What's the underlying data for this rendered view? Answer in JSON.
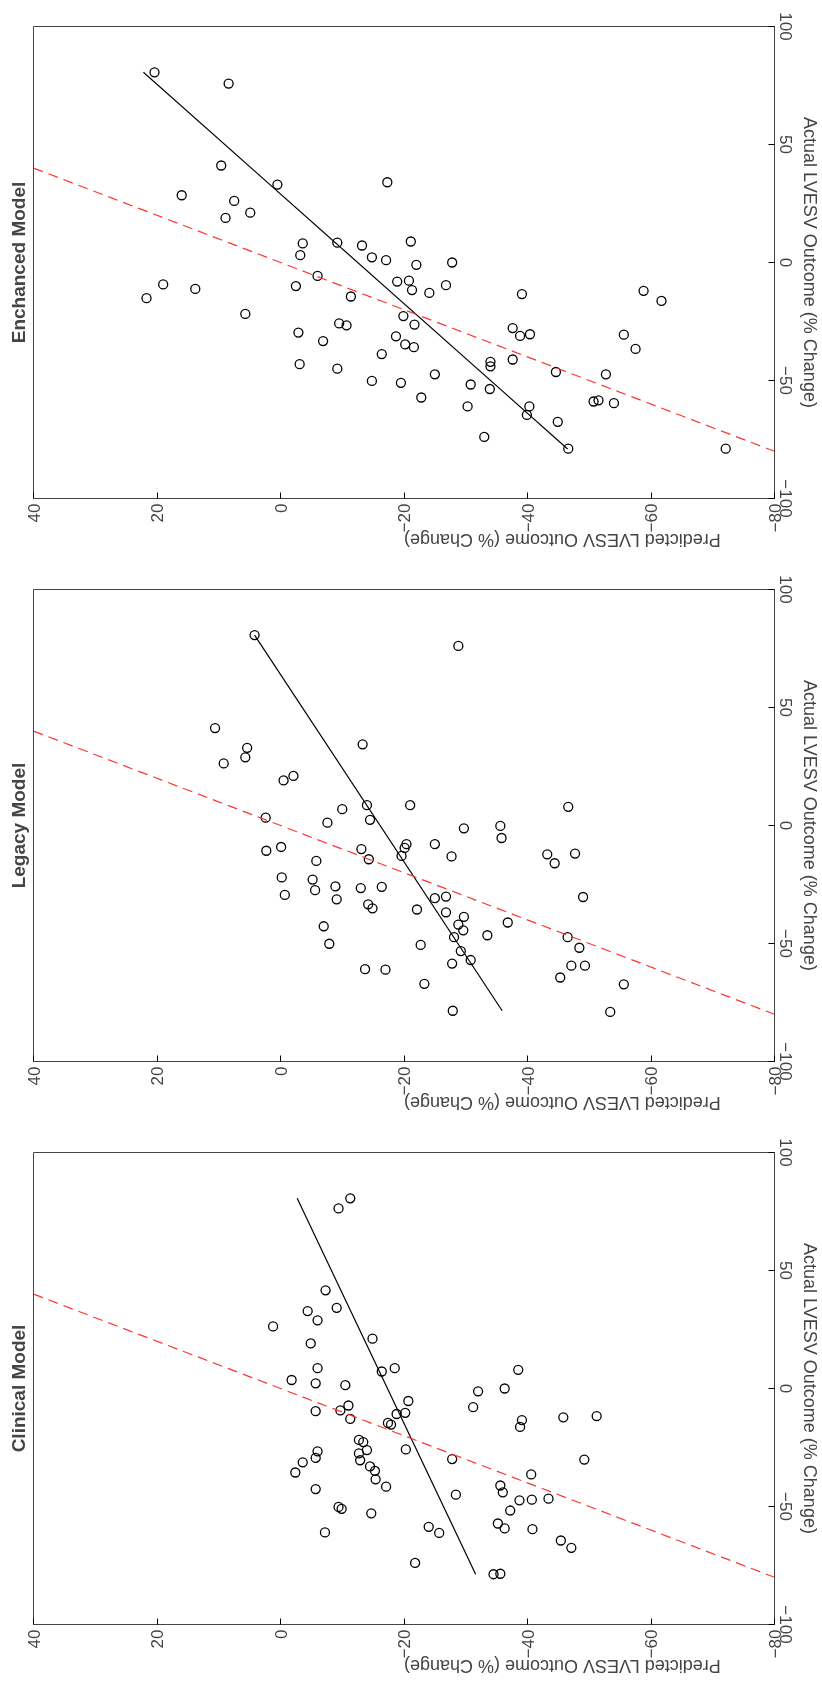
{
  "chart_data": [
    {
      "type": "scatter",
      "title": "Enchanced Model",
      "xlabel": "Predicted LVESV Outcome (% Change)",
      "ylabel": "Actual LVESV Outcome (% Change)",
      "xlim": [
        40,
        -80
      ],
      "xticks": [
        40,
        20,
        0,
        -20,
        -40,
        -60,
        -80
      ],
      "ylim": [
        -100,
        100
      ],
      "yticks": [
        -100,
        -50,
        0,
        50,
        100
      ],
      "grid": false,
      "series": [
        {
          "color": "#000000",
          "marker": "circle",
          "x": [
            20.4,
            8.4,
            9.6,
            0.5,
            16.0,
            7.5,
            8.9,
            4.9,
            -17.3,
            -3.6,
            -3.2,
            -9.2,
            -13.2,
            -14.8,
            -17.1,
            -21.1,
            -22.0,
            -27.8,
            21.7,
            19.0,
            13.8,
            5.7,
            -2.5,
            -6.0,
            -11.4,
            -18.9,
            -20.8,
            -21.3,
            -24.1,
            -26.8,
            -19.9,
            -9.5,
            -10.7,
            -21.7,
            -2.9,
            -6.9,
            -18.7,
            -20.2,
            -21.6,
            -16.4,
            -3.1,
            -9.2,
            -14.8,
            -19.5,
            -25.0,
            -22.8,
            -30.8,
            -30.3,
            -33.0,
            -33.9,
            -34.0,
            -34.0,
            -37.6,
            -37.6,
            -38.8,
            -40.4,
            -39.1,
            -40.3,
            -39.9,
            -44.6,
            -44.9,
            -46.6,
            -50.7,
            -51.5,
            -52.7,
            -54.0,
            -55.6,
            -57.5,
            -58.8,
            -61.7,
            -72.1
          ],
          "values": [
            80.6,
            75.8,
            41.1,
            33.0,
            28.5,
            26.1,
            18.9,
            21.1,
            34.0,
            8.1,
            3.1,
            8.4,
            7.2,
            2.2,
            1.0,
            8.9,
            -1.0,
            0,
            -15.1,
            -9.3,
            -11.2,
            -21.8,
            -10.0,
            -5.7,
            -14.4,
            -8.1,
            -7.7,
            -11.7,
            -12.9,
            -9.6,
            -22.7,
            -25.8,
            -26.6,
            -26.3,
            -29.7,
            -33.3,
            -31.3,
            -34.7,
            -35.9,
            -38.8,
            -43.1,
            -45.0,
            -50.2,
            -51.0,
            -47.4,
            -57.2,
            -51.7,
            -61.0,
            -73.9,
            -53.6,
            -42.1,
            -44.0,
            -41.1,
            -27.8,
            -31.1,
            -30.4,
            -13.4,
            -61.0,
            -64.6,
            -46.4,
            -67.5,
            -78.9,
            -58.9,
            -58.4,
            -47.4,
            -59.6,
            -30.6,
            -36.6,
            -12.0,
            -16.3,
            -78.9
          ]
        },
        {
          "type": "line",
          "color": "#000000",
          "line_style": "solid",
          "x": [
            22.2,
            -46.5
          ],
          "values": [
            80.6,
            -79
          ]
        },
        {
          "type": "line",
          "color": "#ff3333",
          "line_style": "dashed",
          "x": [
            40,
            -80
          ],
          "values": [
            40,
            -80
          ]
        }
      ]
    },
    {
      "type": "scatter",
      "title": "Legacy Model",
      "xlabel": "Predicted LVESV Outcome (% Change)",
      "ylabel": "Actual LVESV Outcome (% Change)",
      "xlim": [
        40,
        -80
      ],
      "xticks": [
        40,
        20,
        0,
        -20,
        -40,
        -60,
        -80
      ],
      "ylim": [
        -100,
        100
      ],
      "yticks": [
        -100,
        -50,
        0,
        50,
        100
      ],
      "grid": false,
      "series": [
        {
          "color": "#000000",
          "marker": "circle",
          "x": [
            4.2,
            -28.8,
            10.6,
            5.4,
            5.7,
            9.2,
            -13.3,
            -0.5,
            -2.1,
            2.4,
            -10.0,
            -7.6,
            -14.0,
            -14.5,
            -21.0,
            -29.7,
            -35.6,
            -35.8,
            -46.6,
            2.3,
            -0.1,
            -5.8,
            -13.1,
            -14.3,
            -19.6,
            -20.1,
            -20.4,
            -25.0,
            -27.7,
            -0.2,
            -0.7,
            -5.2,
            -5.6,
            -8.9,
            -9.1,
            -13.0,
            -16.4,
            -14.2,
            -14.9,
            -22.1,
            -25.0,
            -26.8,
            -26.8,
            -29.7,
            -28.8,
            -29.6,
            -28.1,
            -29.2,
            -30.8,
            -27.8,
            -22.7,
            -7.0,
            -7.9,
            -13.7,
            -17.0,
            -33.5,
            -36.8,
            -43.2,
            -44.4,
            -47.7,
            -49.0,
            -46.5,
            -48.4,
            -49.3,
            -47.1,
            -45.3,
            -55.6,
            -53.4,
            -23.3,
            -27.9
          ],
          "values": [
            80.7,
            76.1,
            41.3,
            32.9,
            28.9,
            26.3,
            34.4,
            19.1,
            21.0,
            3.3,
            6.9,
            1.2,
            8.6,
            2.4,
            8.6,
            -1.2,
            -0.2,
            -5.3,
            7.9,
            -10.7,
            -9.1,
            -15.0,
            -10.0,
            -14.3,
            -12.9,
            -9.5,
            -7.9,
            -7.9,
            -13.1,
            -22.0,
            -29.4,
            -22.9,
            -27.4,
            -25.8,
            -31.3,
            -26.5,
            -26.0,
            -33.4,
            -35.1,
            -35.6,
            -30.8,
            -30.1,
            -36.8,
            -38.7,
            -42.0,
            -44.4,
            -47.3,
            -53.2,
            -57.0,
            -58.5,
            -50.6,
            -42.7,
            -50.1,
            -60.9,
            -61.1,
            -46.5,
            -41.1,
            -12.2,
            -16.0,
            -11.9,
            -30.3,
            -47.3,
            -51.8,
            -59.4,
            -59.4,
            -64.4,
            -67.3,
            -79.0,
            -67.1,
            -78.5
          ]
        },
        {
          "type": "line",
          "color": "#000000",
          "line_style": "solid",
          "x": [
            4.2,
            -35.9
          ],
          "values": [
            80.7,
            -78.5
          ]
        },
        {
          "type": "line",
          "color": "#ff3333",
          "line_style": "dashed",
          "x": [
            40,
            -80
          ],
          "values": [
            40,
            -80
          ]
        }
      ]
    },
    {
      "type": "scatter",
      "title": "Clinical Model",
      "xlabel": "Predicted LVESV Outcome (% Change)",
      "ylabel": "Actual LVESV Outcome (% Change)",
      "xlim": [
        40,
        -80
      ],
      "xticks": [
        40,
        20,
        0,
        -20,
        -40,
        -60,
        -80
      ],
      "ylim": [
        -100,
        100
      ],
      "yticks": [
        -100,
        -50,
        0,
        50,
        100
      ],
      "grid": false,
      "series": [
        {
          "color": "#000000",
          "marker": "circle",
          "x": [
            -11.3,
            -9.4,
            -7.3,
            -9.1,
            -4.4,
            -6.0,
            1.2,
            -4.9,
            -14.9,
            -6.0,
            -16.4,
            -18.5,
            -1.8,
            -5.7,
            -10.5,
            -32.0,
            -36.3,
            -38.5,
            -5.7,
            -9.7,
            -11.0,
            -11.3,
            -17.4,
            -17.9,
            -18.8,
            -20.2,
            -20.7,
            -31.2,
            -39.1,
            -38.8,
            -45.8,
            -51.2,
            -12.7,
            -13.4,
            -14.0,
            -6.0,
            -12.7,
            -12.9,
            -20.3,
            -5.7,
            -3.6,
            -2.4,
            -14.5,
            -15.3,
            -15.4,
            -17.1,
            -27.8,
            -5.7,
            -9.4,
            -9.9,
            -14.7,
            -28.4,
            -35.6,
            -36.0,
            -40.6,
            -49.2,
            -38.7,
            -40.7,
            -37.2,
            -43.4,
            -7.2,
            -24.0,
            -25.7,
            -35.2,
            -36.3,
            -40.8,
            -45.4,
            -47.1,
            -21.8,
            -34.5,
            -35.6
          ],
          "values": [
            80.6,
            76.3,
            41.6,
            34.2,
            32.8,
            28.9,
            26.3,
            19.1,
            21.1,
            8.6,
            7.2,
            8.6,
            3.6,
            2.2,
            1.4,
            -1.2,
            0,
            7.9,
            -9.6,
            -9.3,
            -7.2,
            -12.9,
            -14.6,
            -15.3,
            -10.8,
            -10.3,
            -5.3,
            -7.9,
            -13.4,
            -16.3,
            -12.2,
            -11.7,
            -21.8,
            -22.7,
            -26.1,
            -26.6,
            -27.5,
            -30.4,
            -25.8,
            -29.4,
            -31.3,
            -35.6,
            -33.0,
            -34.9,
            -38.5,
            -41.6,
            -29.9,
            -42.6,
            -50.2,
            -51.0,
            -52.9,
            -45.0,
            -41.1,
            -44.0,
            -36.4,
            -30.1,
            -47.4,
            -47.1,
            -51.7,
            -46.7,
            -61.0,
            -58.6,
            -61.2,
            -57.2,
            -59.3,
            -59.6,
            -64.4,
            -67.5,
            -73.9,
            -78.7,
            -78.5
          ]
        },
        {
          "type": "line",
          "color": "#000000",
          "line_style": "solid",
          "x": [
            -2.7,
            -31.6
          ],
          "values": [
            80.6,
            -78.7
          ]
        },
        {
          "type": "line",
          "color": "#ff3333",
          "line_style": "dashed",
          "x": [
            40,
            -80
          ],
          "values": [
            40,
            -80
          ]
        }
      ]
    }
  ]
}
